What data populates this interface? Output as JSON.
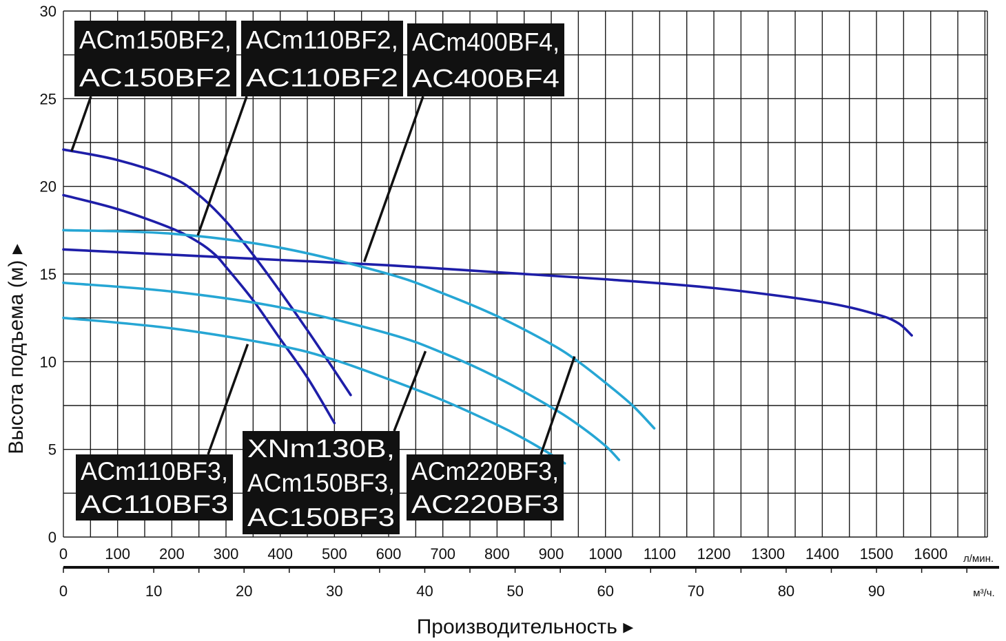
{
  "chart_data": {
    "type": "line",
    "ylabel": "Высота подъема (м) ▸",
    "xlabel": "Производительность ▸",
    "ylim": [
      0,
      30
    ],
    "xlim": [
      0,
      1700
    ],
    "grid": true,
    "y_ticks": [
      "0",
      "5",
      "10",
      "15",
      "20",
      "25",
      "30"
    ],
    "x_ticks_lmin": [
      "0",
      "100",
      "200",
      "300",
      "400",
      "500",
      "600",
      "700",
      "800",
      "900",
      "1000",
      "1100",
      "1200",
      "1300",
      "1400",
      "1500",
      "1600"
    ],
    "x_unit_lmin": "л/мин.",
    "x_ticks_m3h": [
      "0",
      "10",
      "20",
      "30",
      "40",
      "50",
      "60",
      "70",
      "80",
      "90"
    ],
    "x_unit_m3h": "м³/ч.",
    "colors": {
      "dark_blue": "#1e1ea8",
      "light_blue": "#26a6d4",
      "label_bg": "#111111"
    },
    "series": [
      {
        "color": "#1e1ea8",
        "x": [
          0,
          100,
          200,
          250,
          300,
          350,
          400,
          450,
          500,
          530
        ],
        "y": [
          22.1,
          21.5,
          20.5,
          19.5,
          18.0,
          16.1,
          14.0,
          11.8,
          9.5,
          8.1
        ]
      },
      {
        "color": "#1e1ea8",
        "x": [
          0,
          100,
          200,
          250,
          280,
          300,
          350,
          400,
          450,
          500
        ],
        "y": [
          19.5,
          18.7,
          17.6,
          16.8,
          16.1,
          15.4,
          13.5,
          11.3,
          9.1,
          6.5
        ]
      },
      {
        "color": "#1e1ea8",
        "x": [
          0,
          200,
          400,
          600,
          800,
          1000,
          1200,
          1400,
          1500,
          1540,
          1565
        ],
        "y": [
          16.4,
          16.1,
          15.8,
          15.5,
          15.1,
          14.7,
          14.2,
          13.4,
          12.7,
          12.2,
          11.5
        ]
      },
      {
        "color": "#26a6d4",
        "x": [
          0,
          200,
          400,
          600,
          700,
          800,
          900,
          950,
          1000,
          1050,
          1090
        ],
        "y": [
          17.5,
          17.3,
          16.5,
          15.0,
          13.9,
          12.6,
          11.0,
          10.0,
          8.8,
          7.5,
          6.2
        ]
      },
      {
        "color": "#26a6d4",
        "x": [
          0,
          200,
          400,
          600,
          700,
          800,
          900,
          950,
          1000,
          1025
        ],
        "y": [
          14.5,
          14.0,
          13.1,
          11.6,
          10.5,
          9.1,
          7.4,
          6.4,
          5.2,
          4.4
        ]
      },
      {
        "color": "#26a6d4",
        "x": [
          0,
          200,
          400,
          500,
          600,
          700,
          800,
          850,
          900,
          925
        ],
        "y": [
          12.5,
          11.9,
          10.9,
          10.1,
          9.0,
          7.8,
          6.4,
          5.6,
          4.7,
          4.2
        ]
      }
    ],
    "annotations": [
      {
        "lines": [
          "ACm150BF2,",
          "AC150BF2"
        ],
        "points_to": [
          15,
          22
        ]
      },
      {
        "lines": [
          "ACm110BF2,",
          "AC110BF2"
        ],
        "points_to": [
          248,
          17.2
        ]
      },
      {
        "lines": [
          "ACm400BF4,",
          "AC400BF4"
        ],
        "points_to": [
          555,
          15.7
        ]
      },
      {
        "lines": [
          "ACm110BF3,",
          "AC110BF3"
        ],
        "points_to": [
          340,
          11.0
        ]
      },
      {
        "lines": [
          "XNm130B,",
          "ACm150BF3,",
          "AC150BF3"
        ],
        "points_to": [
          668,
          10.6
        ]
      },
      {
        "lines": [
          "ACm220BF3,",
          "AC220BF3"
        ],
        "points_to": [
          943,
          10.3
        ]
      }
    ]
  }
}
